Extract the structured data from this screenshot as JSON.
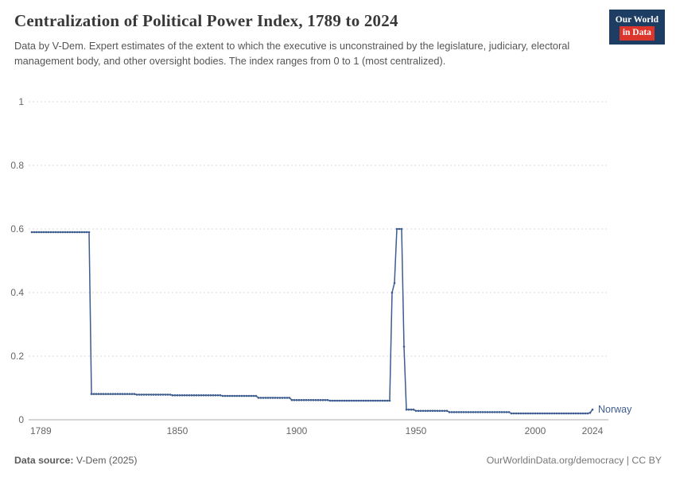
{
  "header": {
    "title": "Centralization of Political Power Index, 1789 to 2024",
    "subtitle": "Data by V-Dem. Expert estimates of the extent to which the executive is unconstrained by the legislature, judiciary, electoral management body, and other oversight bodies. The index ranges from 0 to 1 (most centralized).",
    "logo": {
      "line1": "Our World",
      "line2": "in Data",
      "bg_color": "#1d3d63",
      "accent_color": "#dc352b"
    }
  },
  "chart_data": {
    "type": "line",
    "title": "Centralization of Political Power Index, 1789 to 2024",
    "xlabel": "",
    "ylabel": "",
    "xlim": [
      1789,
      2024
    ],
    "ylim": [
      0,
      1
    ],
    "grid": "horizontal-dotted",
    "x_ticks": [
      1789,
      1850,
      1900,
      1950,
      2000,
      2024
    ],
    "y_ticks": [
      0,
      0.2,
      0.4,
      0.6,
      0.8,
      1
    ],
    "series": [
      {
        "name": "Norway",
        "color": "#3d5c8f",
        "segments": [
          {
            "from": 1789,
            "to": 1813,
            "value": 0.59
          },
          {
            "from": 1814,
            "to": 1832,
            "value": 0.081
          },
          {
            "from": 1833,
            "to": 1847,
            "value": 0.079
          },
          {
            "from": 1848,
            "to": 1868,
            "value": 0.077
          },
          {
            "from": 1869,
            "to": 1883,
            "value": 0.075
          },
          {
            "from": 1884,
            "to": 1897,
            "value": 0.069
          },
          {
            "from": 1898,
            "to": 1913,
            "value": 0.062
          },
          {
            "from": 1914,
            "to": 1939,
            "value": 0.06
          },
          {
            "from": 1940,
            "to": 1940,
            "value": 0.4
          },
          {
            "from": 1941,
            "to": 1941,
            "value": 0.43
          },
          {
            "from": 1942,
            "to": 1944,
            "value": 0.6
          },
          {
            "from": 1945,
            "to": 1945,
            "value": 0.23
          },
          {
            "from": 1946,
            "to": 1949,
            "value": 0.032
          },
          {
            "from": 1950,
            "to": 1963,
            "value": 0.028
          },
          {
            "from": 1964,
            "to": 1989,
            "value": 0.024
          },
          {
            "from": 1990,
            "to": 2022,
            "value": 0.02
          },
          {
            "from": 2023,
            "to": 2023,
            "value": 0.022
          },
          {
            "from": 2024,
            "to": 2024,
            "value": 0.032
          }
        ]
      }
    ]
  },
  "footer": {
    "source_label": "Data source:",
    "source_value": " V-Dem (2025)",
    "credit": "OurWorldinData.org/democracy | CC BY"
  }
}
